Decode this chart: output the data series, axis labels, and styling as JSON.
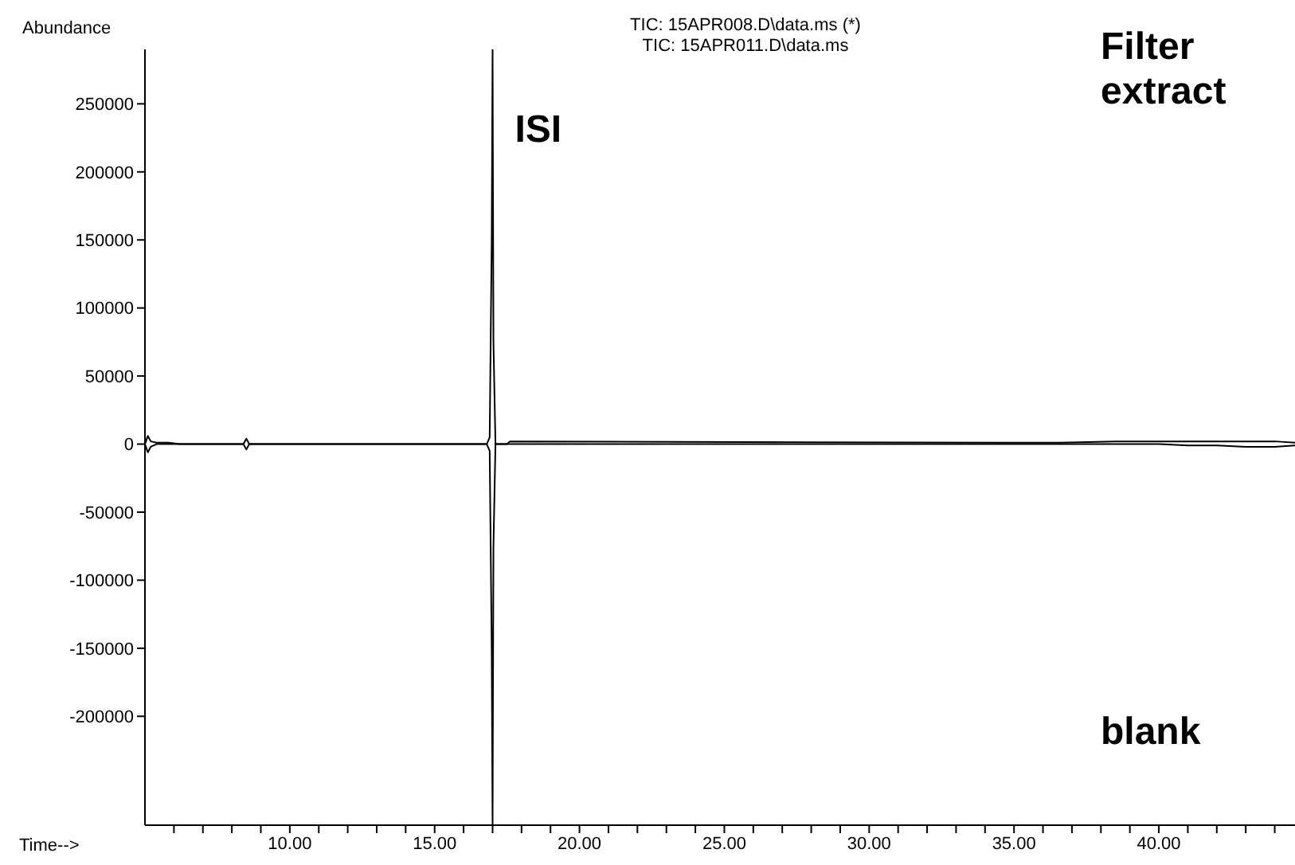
{
  "chart_data": {
    "type": "line",
    "title": "TIC: 15APR008.D\\data.ms (*)",
    "subtitle": "TIC: 15APR011.D\\data.ms",
    "xlabel": "Time-->",
    "ylabel": "Abundance",
    "xlim": [
      5.0,
      44.7
    ],
    "ylim": [
      -280000,
      290000
    ],
    "xticks": [
      {
        "value": 6,
        "label": null
      },
      {
        "value": 7,
        "label": null
      },
      {
        "value": 8,
        "label": null
      },
      {
        "value": 9,
        "label": null
      },
      {
        "value": 10,
        "label": "10.00"
      },
      {
        "value": 11,
        "label": null
      },
      {
        "value": 12,
        "label": null
      },
      {
        "value": 13,
        "label": null
      },
      {
        "value": 14,
        "label": null
      },
      {
        "value": 15,
        "label": "15.00"
      },
      {
        "value": 16,
        "label": null
      },
      {
        "value": 17,
        "label": null
      },
      {
        "value": 18,
        "label": null
      },
      {
        "value": 19,
        "label": null
      },
      {
        "value": 20,
        "label": "20.00"
      },
      {
        "value": 21,
        "label": null
      },
      {
        "value": 22,
        "label": null
      },
      {
        "value": 23,
        "label": null
      },
      {
        "value": 24,
        "label": null
      },
      {
        "value": 25,
        "label": "25.00"
      },
      {
        "value": 26,
        "label": null
      },
      {
        "value": 27,
        "label": null
      },
      {
        "value": 28,
        "label": null
      },
      {
        "value": 29,
        "label": null
      },
      {
        "value": 30,
        "label": "30.00"
      },
      {
        "value": 31,
        "label": null
      },
      {
        "value": 32,
        "label": null
      },
      {
        "value": 33,
        "label": null
      },
      {
        "value": 34,
        "label": null
      },
      {
        "value": 35,
        "label": "35.00"
      },
      {
        "value": 36,
        "label": null
      },
      {
        "value": 37,
        "label": null
      },
      {
        "value": 38,
        "label": null
      },
      {
        "value": 39,
        "label": null
      },
      {
        "value": 40,
        "label": "40.00"
      },
      {
        "value": 41,
        "label": null
      },
      {
        "value": 42,
        "label": null
      },
      {
        "value": 43,
        "label": null
      },
      {
        "value": 44,
        "label": null
      }
    ],
    "yticks": [
      -200000,
      -150000,
      -100000,
      -50000,
      0,
      50000,
      100000,
      150000,
      200000,
      250000
    ],
    "marker": "none",
    "legend": false,
    "grid": false,
    "annotations": [
      {
        "text": "ISI",
        "x": 17.0,
        "y": 230000
      },
      "Filter extract",
      "blank"
    ],
    "series": [
      {
        "color": "#000000",
        "x": [
          5.0,
          5.1,
          5.2,
          5.4,
          5.8,
          6.2,
          8.4,
          8.5,
          8.6,
          10.2,
          16.8,
          16.9,
          16.97,
          17.0,
          17.03,
          17.1,
          17.5,
          17.6,
          34.5,
          36.6,
          38.5,
          39.0,
          40.0,
          41.0,
          42.0,
          43.0,
          44.0,
          44.7
        ],
        "values": [
          0,
          6000,
          2000,
          1000,
          1000,
          0,
          0,
          4000,
          0,
          0,
          0,
          5000,
          150000,
          290000,
          75000,
          0,
          0,
          2000,
          1000,
          1000,
          2000,
          2000,
          2000,
          2000,
          2000,
          2000,
          2000,
          1000
        ]
      },
      {
        "color": "#000000",
        "x": [
          5.0,
          5.1,
          5.2,
          5.4,
          5.8,
          6.2,
          8.4,
          8.5,
          8.6,
          16.8,
          16.9,
          16.97,
          17.0,
          17.03,
          17.1,
          39.0,
          40.0,
          41.0,
          42.0,
          43.0,
          44.0,
          44.7
        ],
        "values": [
          0,
          -6000,
          -2000,
          0,
          0,
          0,
          0,
          -4000,
          0,
          0,
          -5000,
          -150000,
          -280000,
          -75000,
          0,
          0,
          0,
          -1000,
          -1000,
          -2000,
          -2000,
          -1000
        ]
      }
    ]
  }
}
